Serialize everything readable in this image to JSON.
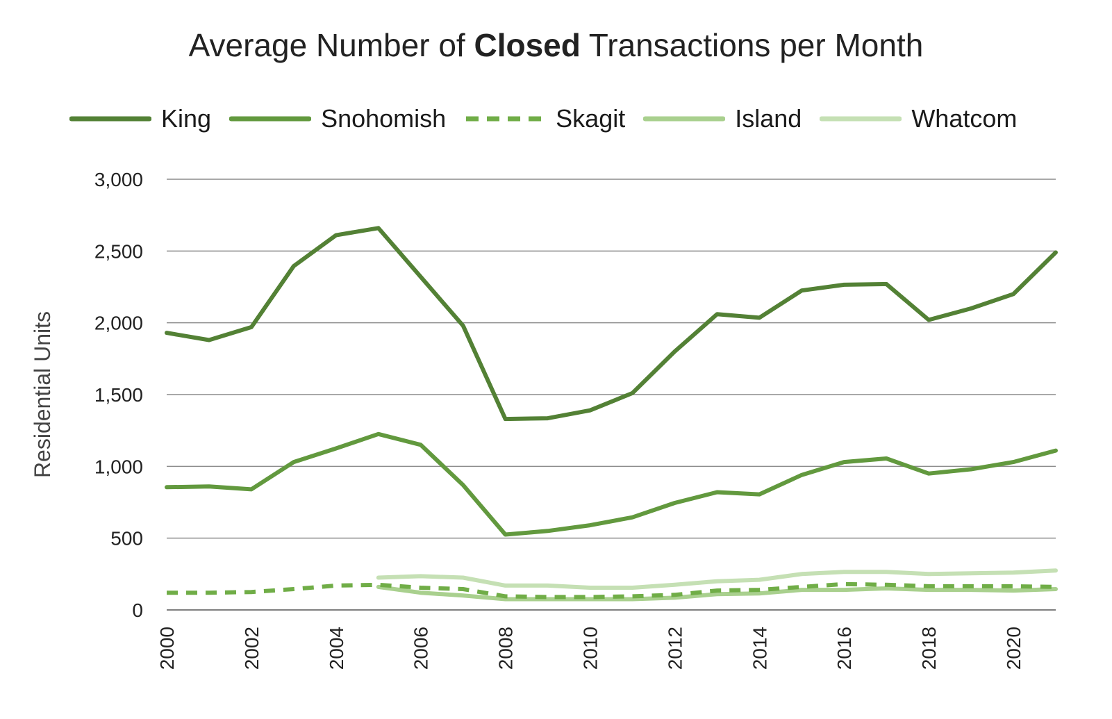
{
  "chart_data": {
    "type": "line",
    "title_prefix": "Average Number of",
    "title_bold": "Closed",
    "title_suffix": "Transactions per Month",
    "ylabel": "Residential Units",
    "xlabel": "",
    "ylim": [
      0,
      3000
    ],
    "yticks": [
      0,
      500,
      1000,
      1500,
      2000,
      2500,
      3000
    ],
    "ytick_labels": [
      "0",
      "500",
      "1,000",
      "1,500",
      "2,000",
      "2,500",
      "3,000"
    ],
    "x": [
      2000,
      2001,
      2002,
      2003,
      2004,
      2005,
      2006,
      2007,
      2008,
      2009,
      2010,
      2011,
      2012,
      2013,
      2014,
      2015,
      2016,
      2017,
      2018,
      2019,
      2020,
      2021
    ],
    "xticks": [
      2000,
      2002,
      2004,
      2006,
      2008,
      2010,
      2012,
      2014,
      2016,
      2018,
      2020
    ],
    "grid": true,
    "legend_position": "top",
    "series": [
      {
        "name": "King",
        "color": "#538135",
        "dash": false,
        "values": [
          1930,
          1880,
          1970,
          2395,
          2610,
          2660,
          2320,
          1980,
          1330,
          1335,
          1390,
          1510,
          1800,
          2060,
          2035,
          2225,
          2265,
          2270,
          2020,
          2100,
          2200,
          2490
        ]
      },
      {
        "name": "Snohomish",
        "color": "#62993e",
        "dash": false,
        "values": [
          855,
          860,
          840,
          1030,
          1125,
          1225,
          1150,
          870,
          525,
          550,
          590,
          645,
          745,
          820,
          805,
          940,
          1030,
          1055,
          950,
          980,
          1030,
          1110
        ]
      },
      {
        "name": "Skagit",
        "color": "#70ad47",
        "dash": true,
        "values": [
          120,
          120,
          125,
          145,
          170,
          175,
          155,
          145,
          95,
          90,
          90,
          95,
          105,
          135,
          140,
          160,
          180,
          175,
          165,
          165,
          165,
          160
        ]
      },
      {
        "name": "Island",
        "color": "#a9d08e",
        "dash": false,
        "values": [
          null,
          null,
          null,
          null,
          null,
          160,
          120,
          100,
          75,
          75,
          75,
          75,
          85,
          110,
          115,
          140,
          140,
          150,
          140,
          140,
          135,
          145
        ]
      },
      {
        "name": "Whatcom",
        "color": "#c5e0b4",
        "dash": false,
        "values": [
          null,
          null,
          null,
          null,
          null,
          225,
          235,
          225,
          170,
          170,
          155,
          155,
          175,
          200,
          210,
          250,
          265,
          265,
          250,
          255,
          260,
          275
        ]
      }
    ]
  }
}
